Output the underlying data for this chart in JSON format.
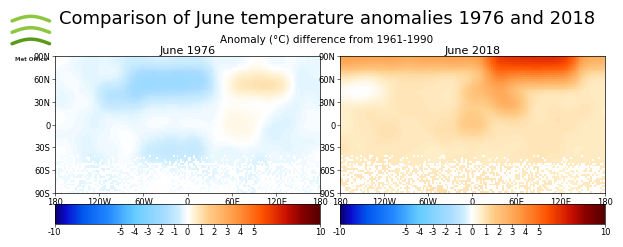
{
  "title": "Comparison of June temperature anomalies 1976 and 2018",
  "subtitle": "Anomaly (°C) difference from 1961-1990",
  "map1_title": "June 1976",
  "map2_title": "June 2018",
  "colorbar_ticks": [
    -10,
    -5,
    -4,
    -3,
    -2,
    -1,
    0,
    1,
    2,
    3,
    4,
    5,
    10
  ],
  "vmin": -10,
  "vmax": 10,
  "title_fontsize": 13,
  "subtitle_fontsize": 7.5,
  "map_title_fontsize": 8,
  "tick_fontsize": 6,
  "lon_ticks": [
    -180,
    -120,
    -60,
    0,
    60,
    120,
    180
  ],
  "lon_labels": [
    "180",
    "120W",
    "60W",
    "0",
    "60E",
    "120E",
    "180"
  ],
  "lat_ticks": [
    90,
    60,
    30,
    0,
    -30,
    -60,
    -90
  ],
  "lat_labels": [
    "90N",
    "60N",
    "30N",
    "0",
    "30S",
    "60S",
    "90S"
  ],
  "cmap_colors": [
    [
      0.0,
      "#08006e"
    ],
    [
      0.04,
      "#0a0acd"
    ],
    [
      0.1,
      "#0055ee"
    ],
    [
      0.2,
      "#2288ff"
    ],
    [
      0.3,
      "#66ccff"
    ],
    [
      0.42,
      "#aaddff"
    ],
    [
      0.47,
      "#d0eeff"
    ],
    [
      0.5,
      "#ffffff"
    ],
    [
      0.53,
      "#fff0cc"
    ],
    [
      0.58,
      "#ffcc88"
    ],
    [
      0.68,
      "#ff9944"
    ],
    [
      0.78,
      "#ff5500"
    ],
    [
      0.87,
      "#cc1100"
    ],
    [
      0.93,
      "#880000"
    ],
    [
      1.0,
      "#550000"
    ]
  ]
}
